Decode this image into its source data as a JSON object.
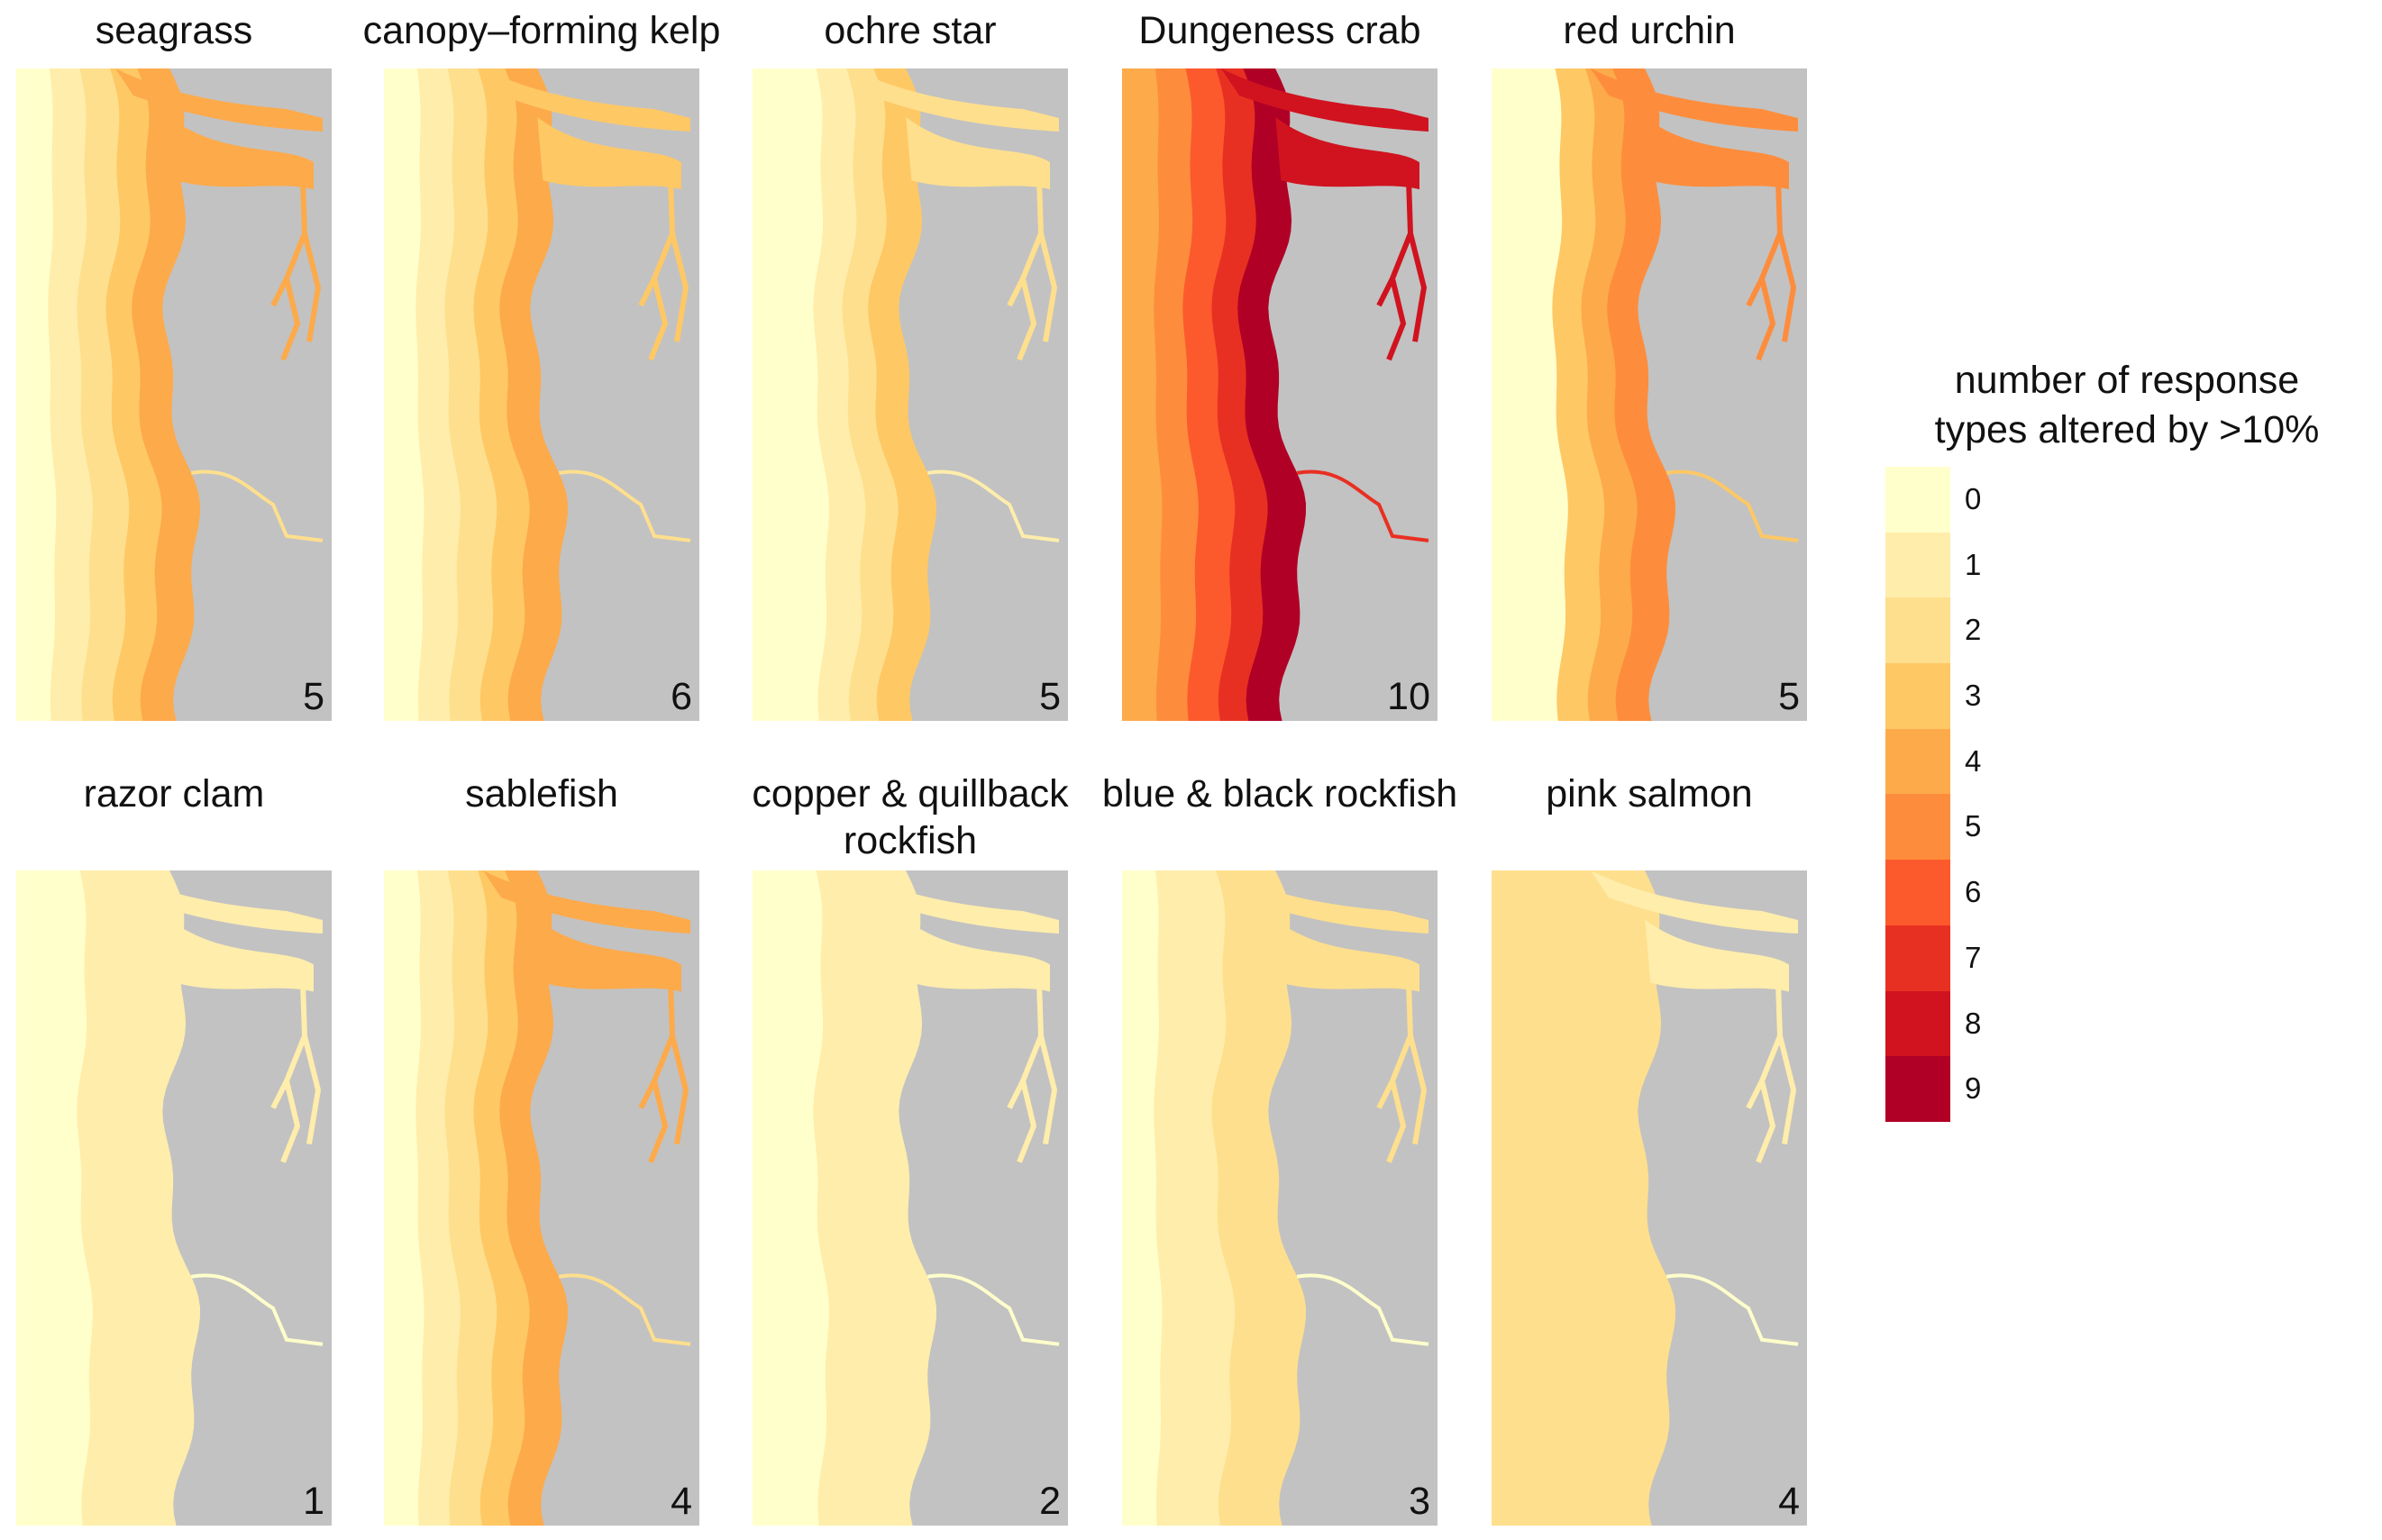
{
  "colors": {
    "land": "#c2c2c2",
    "levels": [
      "#ffffcc",
      "#ffedab",
      "#fedf8d",
      "#fec865",
      "#fdaa4b",
      "#fd8d3c",
      "#fc5a2d",
      "#e83022",
      "#d0131f",
      "#b10026"
    ]
  },
  "panels": [
    {
      "title": "seagrass",
      "count": "5",
      "bands": [
        0,
        1,
        2,
        3,
        4
      ],
      "inland": 4
    },
    {
      "title": "canopy–forming kelp",
      "count": "6",
      "bands": [
        0,
        1,
        2,
        3,
        4
      ],
      "inland": 3
    },
    {
      "title": "ochre star",
      "count": "5",
      "bands": [
        0,
        0,
        1,
        2,
        3
      ],
      "inland": 2
    },
    {
      "title": "Dungeness crab",
      "count": "10",
      "bands": [
        4,
        5,
        6,
        7,
        9
      ],
      "inland": 8
    },
    {
      "title": "red urchin",
      "count": "5",
      "bands": [
        0,
        0,
        3,
        4,
        5
      ],
      "inland": 5
    },
    {
      "title": "razor clam",
      "count": "1",
      "bands": [
        0,
        0,
        1,
        1,
        1
      ],
      "inland": 1
    },
    {
      "title": "sablefish",
      "count": "4",
      "bands": [
        0,
        1,
        2,
        3,
        4
      ],
      "inland": 4
    },
    {
      "title": "copper & quillback rockfish",
      "count": "2",
      "bands": [
        0,
        0,
        1,
        1,
        1
      ],
      "inland": 1
    },
    {
      "title": "blue & black rockfish",
      "count": "3",
      "bands": [
        0,
        1,
        1,
        2,
        2
      ],
      "inland": 2
    },
    {
      "title": "pink salmon",
      "count": "4",
      "bands": [
        2,
        2,
        2,
        2,
        2
      ],
      "inland": 1
    }
  ],
  "legend": {
    "title_line1": "number of response",
    "title_line2": "types altered by >10%",
    "labels": [
      "0",
      "1",
      "2",
      "3",
      "4",
      "5",
      "6",
      "7",
      "8",
      "9"
    ]
  }
}
